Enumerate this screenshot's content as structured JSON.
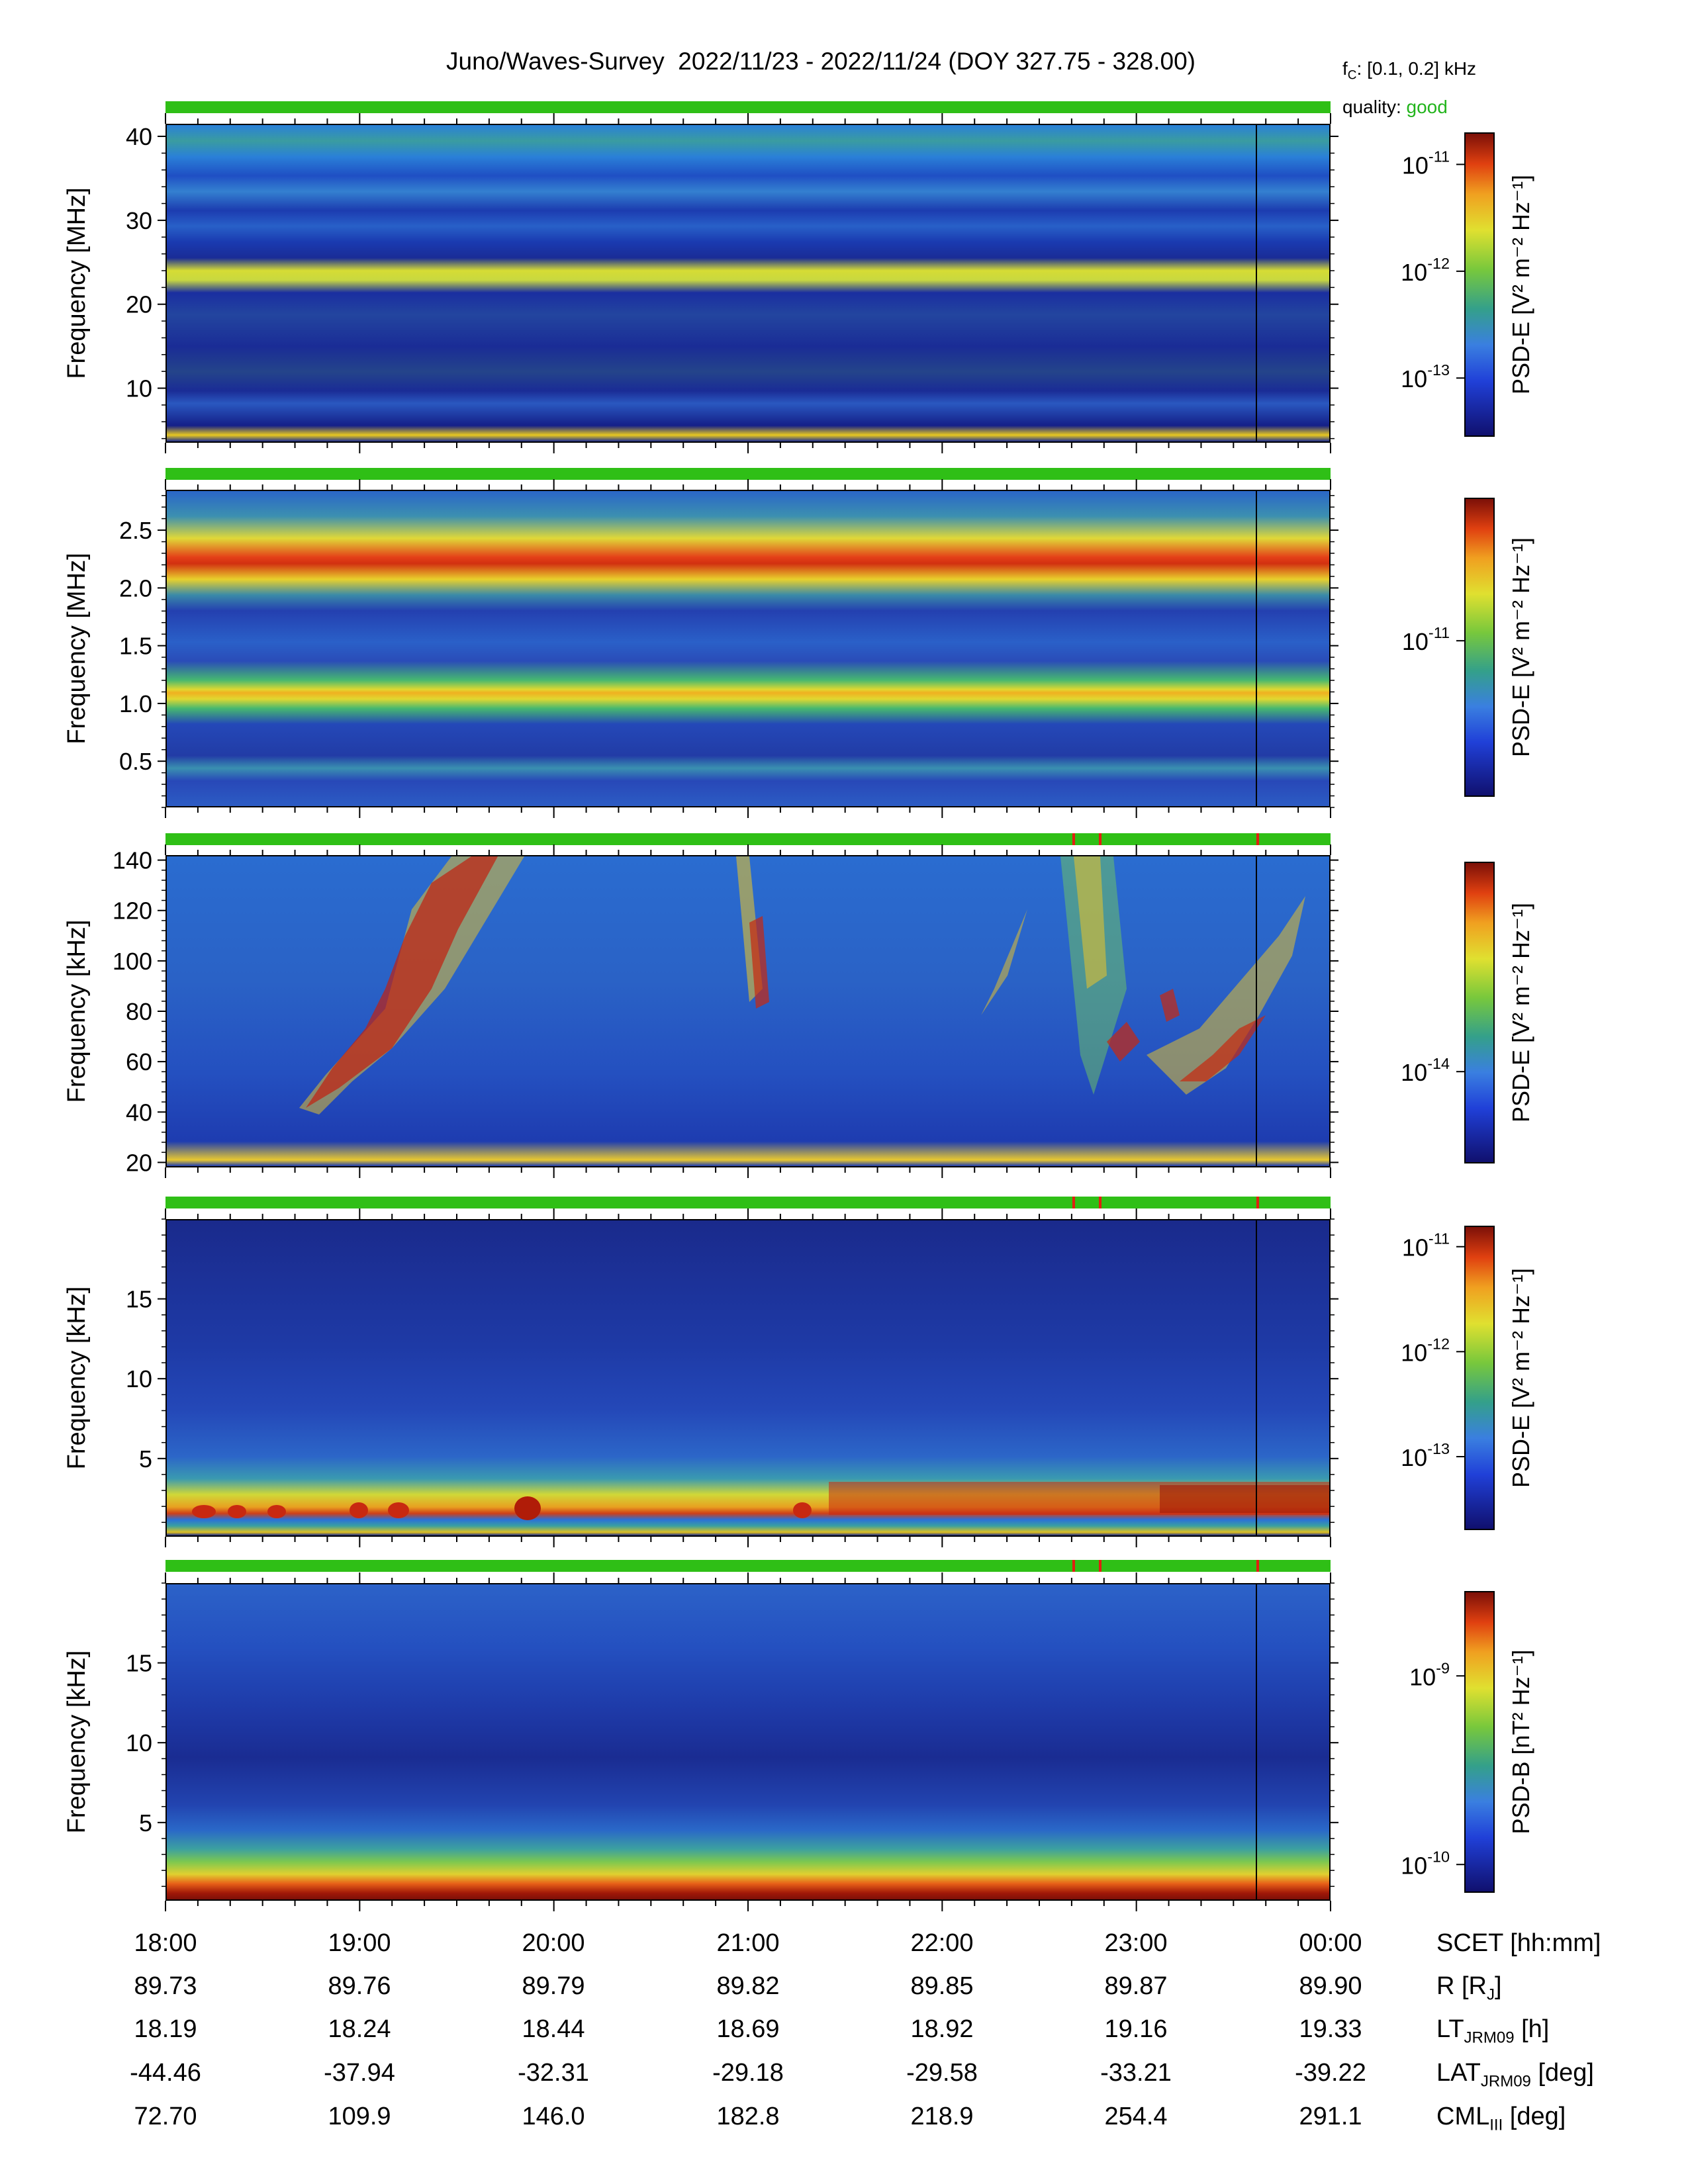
{
  "header": {
    "title": "Juno/Waves-Survey  2022/11/23 - 2022/11/24 (DOY 327.75 - 328.00)",
    "fc_label": "f",
    "fc_sub": "C",
    "fc_value": ": [0.1, 0.2] kHz",
    "quality_label": "quality:",
    "quality_value": "good",
    "quality_color": "#22b41c"
  },
  "chart_data": [
    {
      "type": "heatmap",
      "panel": 1,
      "ylabel": "Frequency [MHz]",
      "yticks": [
        10,
        20,
        30,
        40
      ],
      "ytick_labels": [
        "10",
        "20",
        "30",
        "40"
      ],
      "ylim": [
        3.5,
        41.5
      ],
      "colorbar_label": "PSD-E [V² m⁻² Hz⁻¹]",
      "colorbar_ticks": [
        "10-11",
        "10-12",
        "10-13"
      ],
      "colorbar_tick_values": [
        1e-11,
        1e-12,
        1e-13
      ],
      "features": [
        {
          "name": "band",
          "center": 22,
          "unit": "MHz"
        }
      ]
    },
    {
      "type": "heatmap",
      "panel": 2,
      "ylabel": "Frequency [MHz]",
      "yticks": [
        0.5,
        1.0,
        1.5,
        2.0,
        2.5
      ],
      "ytick_labels": [
        "0.5",
        "1.0",
        "1.5",
        "2.0",
        "2.5"
      ],
      "ylim": [
        0.1,
        2.85
      ],
      "colorbar_label": "PSD-E [V² m⁻² Hz⁻¹]",
      "colorbar_ticks": [
        "10-11"
      ],
      "colorbar_tick_values": [
        1e-11
      ],
      "features": [
        {
          "name": "band",
          "center": 2.25,
          "unit": "MHz"
        },
        {
          "name": "band",
          "center": 1.13,
          "unit": "MHz"
        }
      ]
    },
    {
      "type": "heatmap",
      "panel": 3,
      "ylabel": "Frequency [kHz]",
      "yticks": [
        20,
        40,
        60,
        80,
        100,
        120,
        140
      ],
      "ytick_labels": [
        "20",
        "40",
        "60",
        "80",
        "100",
        "120",
        "140"
      ],
      "ylim": [
        18,
        142
      ],
      "colorbar_label": "PSD-E [V² m⁻² Hz⁻¹]",
      "colorbar_ticks": [
        "10-14"
      ],
      "colorbar_tick_values": [
        1e-14
      ]
    },
    {
      "type": "heatmap",
      "panel": 4,
      "ylabel": "Frequency [kHz]",
      "yticks": [
        5,
        10,
        15
      ],
      "ytick_labels": [
        "5",
        "10",
        "15"
      ],
      "ylim": [
        0.1,
        20
      ],
      "colorbar_label": "PSD-E [V² m⁻² Hz⁻¹]",
      "colorbar_ticks": [
        "10-11",
        "10-12",
        "10-13"
      ],
      "colorbar_tick_values": [
        1e-11,
        1e-12,
        1e-13
      ]
    },
    {
      "type": "heatmap",
      "panel": 5,
      "ylabel": "Frequency [kHz]",
      "yticks": [
        5,
        10,
        15
      ],
      "ytick_labels": [
        "5",
        "10",
        "15"
      ],
      "ylim": [
        0.1,
        20
      ],
      "colorbar_label": "PSD-B [nT² Hz⁻¹]",
      "colorbar_ticks": [
        "10-9",
        "10-10"
      ],
      "colorbar_tick_values": [
        1e-09,
        1e-10
      ]
    }
  ],
  "xaxis": {
    "rows": [
      {
        "label": "SCET [hh:mm]",
        "values": [
          "18:00",
          "19:00",
          "20:00",
          "21:00",
          "22:00",
          "23:00",
          "00:00"
        ]
      },
      {
        "label": "R [R",
        "label_sub": "J",
        "label_end": "]",
        "values": [
          "89.73",
          "89.76",
          "89.79",
          "89.82",
          "89.85",
          "89.87",
          "89.90"
        ]
      },
      {
        "label": "LT",
        "label_sub": "JRM09",
        "label_end": " [h]",
        "values": [
          "18.19",
          "18.24",
          "18.44",
          "18.69",
          "18.92",
          "19.16",
          "19.33"
        ]
      },
      {
        "label": "LAT",
        "label_sub": "JRM09",
        "label_end": " [deg]",
        "values": [
          "-44.46",
          "-37.94",
          "-32.31",
          "-29.18",
          "-29.58",
          "-33.21",
          "-39.22"
        ]
      },
      {
        "label": "CML",
        "label_sub": "III",
        "label_end": " [deg]",
        "values": [
          "72.70",
          "109.9",
          "146.0",
          "182.8",
          "218.9",
          "254.4",
          "291.1"
        ]
      }
    ]
  }
}
